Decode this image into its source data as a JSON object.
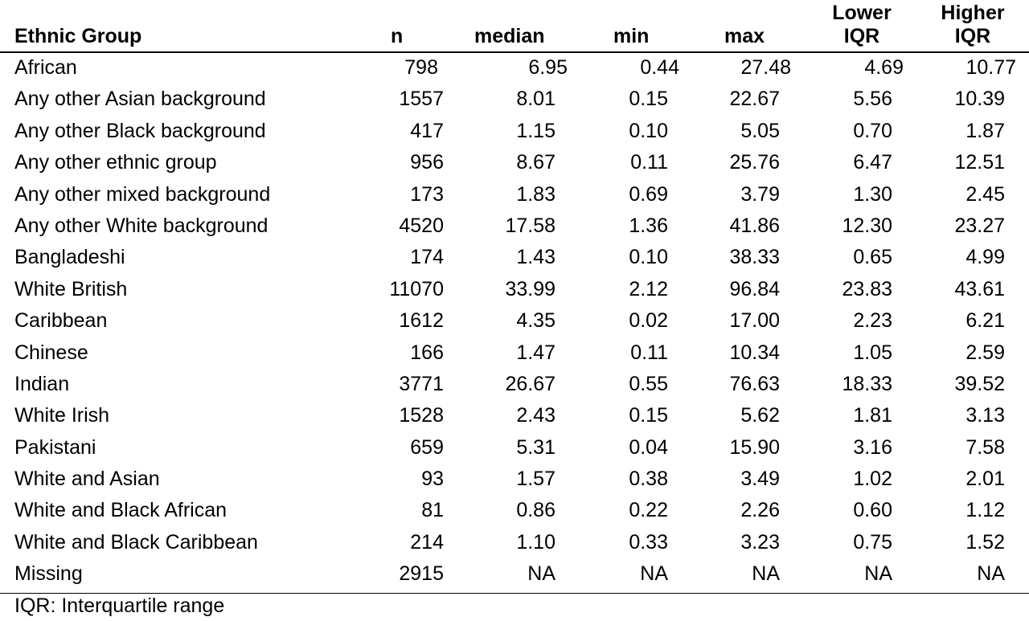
{
  "table": {
    "headers": {
      "group": "Ethnic Group",
      "n": "n",
      "median": "median",
      "min": "min",
      "max": "max",
      "lower_iqr_line1": "Lower",
      "lower_iqr_line2": "IQR",
      "higher_iqr_line1": "Higher",
      "higher_iqr_line2": "IQR"
    },
    "rows": [
      {
        "group": "African",
        "n": "798",
        "median": "6.95",
        "min": "0.44",
        "max": "27.48",
        "lower": "4.69",
        "higher": "10.77"
      },
      {
        "group": "Any other Asian background",
        "n": "1557",
        "median": "8.01",
        "min": "0.15",
        "max": "22.67",
        "lower": "5.56",
        "higher": "10.39"
      },
      {
        "group": "Any other Black background",
        "n": "417",
        "median": "1.15",
        "min": "0.10",
        "max": "5.05",
        "lower": "0.70",
        "higher": "1.87"
      },
      {
        "group": "Any other ethnic group",
        "n": "956",
        "median": "8.67",
        "min": "0.11",
        "max": "25.76",
        "lower": "6.47",
        "higher": "12.51"
      },
      {
        "group": "Any other mixed background",
        "n": "173",
        "median": "1.83",
        "min": "0.69",
        "max": "3.79",
        "lower": "1.30",
        "higher": "2.45"
      },
      {
        "group": "Any other White background",
        "n": "4520",
        "median": "17.58",
        "min": "1.36",
        "max": "41.86",
        "lower": "12.30",
        "higher": "23.27"
      },
      {
        "group": "Bangladeshi",
        "n": "174",
        "median": "1.43",
        "min": "0.10",
        "max": "38.33",
        "lower": "0.65",
        "higher": "4.99"
      },
      {
        "group": "White British",
        "n": "11070",
        "median": "33.99",
        "min": "2.12",
        "max": "96.84",
        "lower": "23.83",
        "higher": "43.61"
      },
      {
        "group": "Caribbean",
        "n": "1612",
        "median": "4.35",
        "min": "0.02",
        "max": "17.00",
        "lower": "2.23",
        "higher": "6.21"
      },
      {
        "group": "Chinese",
        "n": "166",
        "median": "1.47",
        "min": "0.11",
        "max": "10.34",
        "lower": "1.05",
        "higher": "2.59"
      },
      {
        "group": "Indian",
        "n": "3771",
        "median": "26.67",
        "min": "0.55",
        "max": "76.63",
        "lower": "18.33",
        "higher": "39.52"
      },
      {
        "group": "White Irish",
        "n": "1528",
        "median": "2.43",
        "min": "0.15",
        "max": "5.62",
        "lower": "1.81",
        "higher": "3.13"
      },
      {
        "group": "Pakistani",
        "n": "659",
        "median": "5.31",
        "min": "0.04",
        "max": "15.90",
        "lower": "3.16",
        "higher": "7.58"
      },
      {
        "group": "White and Asian",
        "n": "93",
        "median": "1.57",
        "min": "0.38",
        "max": "3.49",
        "lower": "1.02",
        "higher": "2.01"
      },
      {
        "group": "White and Black African",
        "n": "81",
        "median": "0.86",
        "min": "0.22",
        "max": "2.26",
        "lower": "0.60",
        "higher": "1.12"
      },
      {
        "group": "White and Black Caribbean",
        "n": "214",
        "median": "1.10",
        "min": "0.33",
        "max": "3.23",
        "lower": "0.75",
        "higher": "1.52"
      },
      {
        "group": "Missing",
        "n": "2915",
        "median": "NA",
        "min": "NA",
        "max": "NA",
        "lower": "NA",
        "higher": "NA"
      }
    ],
    "footnote": "IQR: Interquartile range"
  }
}
